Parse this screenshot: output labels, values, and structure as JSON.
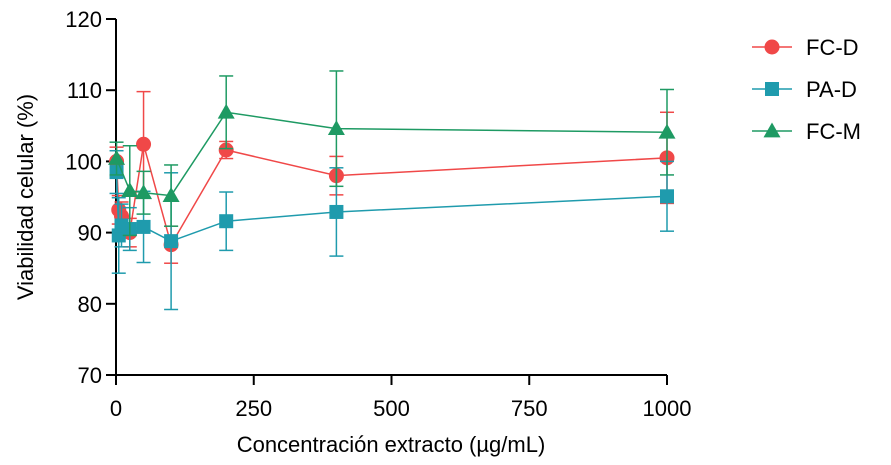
{
  "chart_data": {
    "type": "scatter",
    "xlabel": "Concentración extracto (µg/mL)",
    "ylabel": "Viabilidad celular (%)",
    "xlim": [
      0,
      1000
    ],
    "ylim": [
      70,
      120
    ],
    "xticks": [
      0,
      250,
      500,
      750,
      1000
    ],
    "yticks": [
      70,
      80,
      90,
      100,
      110,
      120
    ],
    "legend_position": "right",
    "grid": false,
    "series": [
      {
        "name": "FC-D",
        "color": "#F04848",
        "marker": "circle",
        "x": [
          1,
          5,
          10,
          25,
          50,
          100,
          200,
          400,
          1000
        ],
        "y": [
          100.0,
          93.2,
          92.3,
          90.0,
          102.4,
          88.3,
          101.6,
          98.0,
          100.5
        ],
        "err": [
          2.0,
          2.0,
          2.0,
          2.0,
          7.4,
          2.6,
          1.2,
          2.7,
          6.4
        ]
      },
      {
        "name": "PA-D",
        "color": "#1F9BAD",
        "marker": "square",
        "x": [
          1,
          5,
          10,
          25,
          50,
          100,
          200,
          400,
          1000
        ],
        "y": [
          98.5,
          89.6,
          91.0,
          90.5,
          90.8,
          88.8,
          91.6,
          92.9,
          95.1
        ],
        "err": [
          3.0,
          5.3,
          3.0,
          3.0,
          5.0,
          9.6,
          4.1,
          6.2,
          4.9
        ]
      },
      {
        "name": "FC-M",
        "color": "#1E9A63",
        "marker": "triangle",
        "x": [
          1,
          25,
          50,
          100,
          200,
          400,
          1000
        ],
        "y": [
          100.4,
          95.9,
          95.6,
          95.2,
          106.9,
          104.6,
          104.1
        ],
        "err": [
          2.3,
          6.3,
          3.0,
          4.3,
          5.1,
          8.1,
          6.0
        ]
      }
    ]
  }
}
